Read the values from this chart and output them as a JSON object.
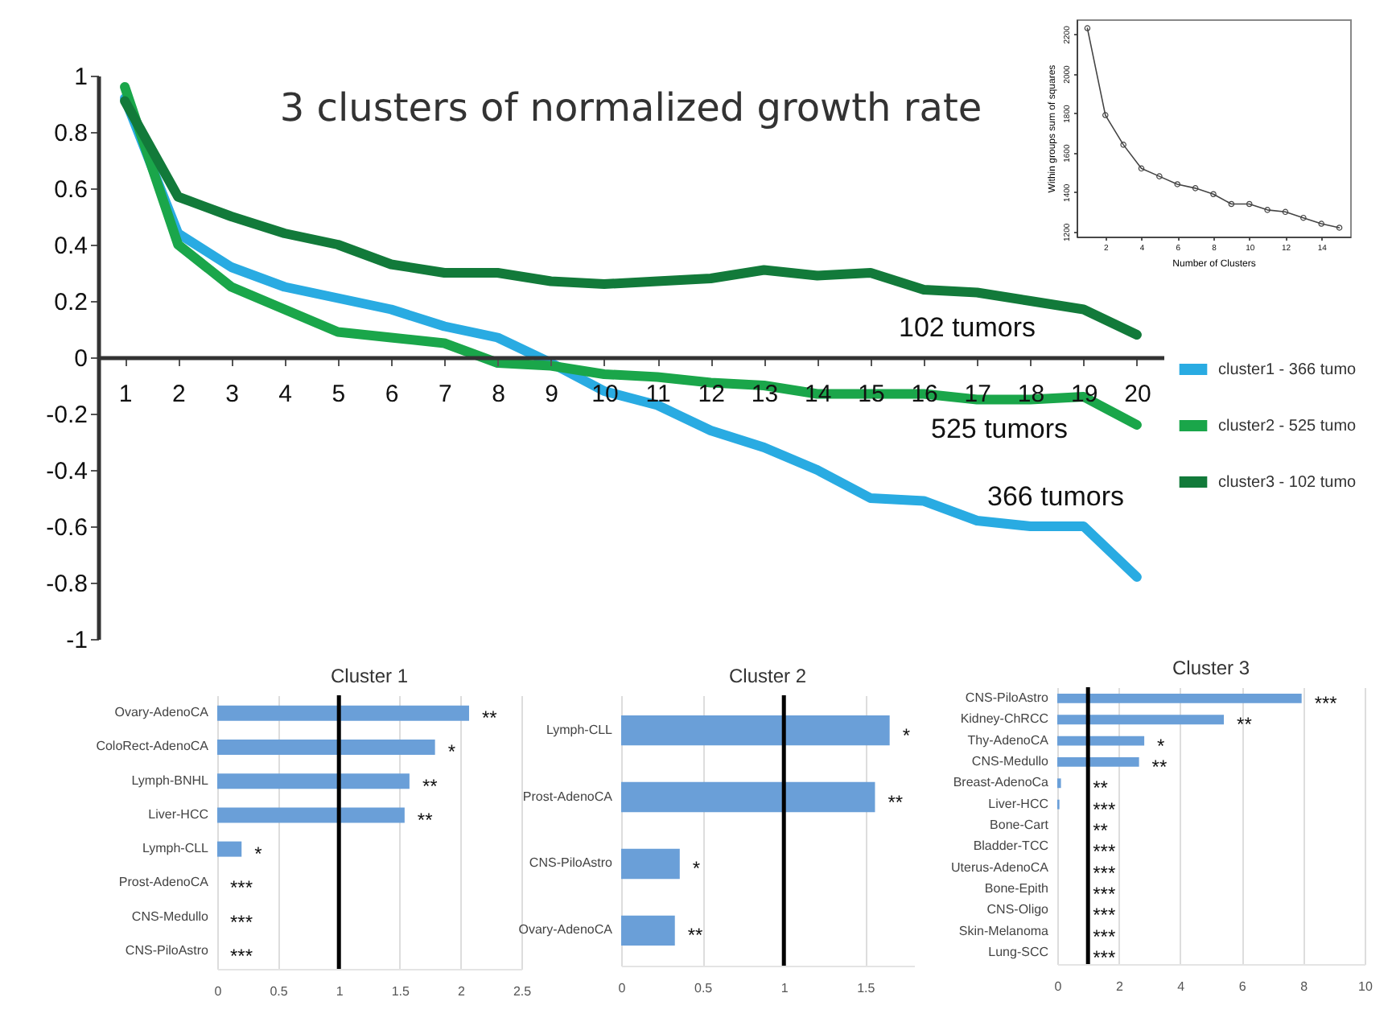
{
  "chart_data": [
    {
      "type": "line",
      "title": "3 clusters of normalized growth rate",
      "x": [
        1,
        2,
        3,
        4,
        5,
        6,
        7,
        8,
        9,
        10,
        11,
        12,
        13,
        14,
        15,
        16,
        17,
        18,
        19,
        20
      ],
      "xlim": [
        0.5,
        20.5
      ],
      "xticks": [
        1,
        2,
        3,
        4,
        5,
        6,
        7,
        8,
        9,
        10,
        11,
        12,
        13,
        14,
        15,
        16,
        17,
        18,
        19,
        20
      ],
      "ylim": [
        -1,
        1
      ],
      "yticks": [
        -1,
        -0.8,
        -0.6,
        -0.4,
        -0.2,
        0,
        0.2,
        0.4,
        0.6,
        0.8,
        1
      ],
      "legend": "right",
      "series": [
        {
          "name": "cluster1 - 366 tumo",
          "color": "#29abe2",
          "values": [
            0.92,
            0.44,
            0.32,
            0.25,
            0.21,
            0.17,
            0.11,
            0.07,
            -0.02,
            -0.12,
            -0.17,
            -0.26,
            -0.32,
            -0.4,
            -0.5,
            -0.51,
            -0.58,
            -0.6,
            -0.6,
            -0.78
          ]
        },
        {
          "name": "cluster2 - 525 tumo",
          "color": "#1aa64a",
          "values": [
            0.96,
            0.4,
            0.25,
            0.17,
            0.09,
            0.07,
            0.05,
            -0.02,
            -0.03,
            -0.06,
            -0.07,
            -0.09,
            -0.1,
            -0.13,
            -0.13,
            -0.13,
            -0.15,
            -0.15,
            -0.14,
            -0.24
          ]
        },
        {
          "name": "cluster3 - 102 tumo",
          "color": "#127a3a",
          "values": [
            0.91,
            0.57,
            0.5,
            0.44,
            0.4,
            0.33,
            0.3,
            0.3,
            0.27,
            0.26,
            0.27,
            0.28,
            0.31,
            0.29,
            0.3,
            0.24,
            0.23,
            0.2,
            0.17,
            0.08
          ]
        }
      ],
      "annotations": [
        "102 tumors",
        "525 tumors",
        "366 tumors"
      ]
    },
    {
      "type": "line",
      "xlabel": "Number of Clusters",
      "ylabel": "Within groups sum of squares",
      "x": [
        1,
        2,
        3,
        4,
        5,
        6,
        7,
        8,
        9,
        10,
        11,
        12,
        13,
        14,
        15
      ],
      "values": [
        2230,
        1790,
        1640,
        1520,
        1480,
        1440,
        1420,
        1390,
        1340,
        1340,
        1310,
        1300,
        1270,
        1240,
        1220
      ],
      "color": "#444444",
      "marker": "circle",
      "xlim": [
        0.4,
        15.6
      ],
      "xticks": [
        2,
        4,
        6,
        8,
        10,
        12,
        14
      ],
      "ylim": [
        1175,
        2275
      ],
      "yticks": [
        1200,
        1400,
        1600,
        1800,
        2000,
        2200
      ]
    },
    {
      "type": "bar",
      "orientation": "horizontal",
      "title": "Cluster 1",
      "categories": [
        "Ovary-AdenoCA",
        "ColoRect-AdenoCA",
        "Lymph-BNHL",
        "Liver-HCC",
        "Lymph-CLL",
        "Prost-AdenoCA",
        "CNS-Medullo",
        "CNS-PiloAstro"
      ],
      "values": [
        2.07,
        1.79,
        1.58,
        1.54,
        0.2,
        0,
        0,
        0
      ],
      "color": "#6a9fd8",
      "xlim": [
        0,
        2.5
      ],
      "xticks": [
        0,
        0.5,
        1,
        1.5,
        2,
        2.5
      ],
      "grid": "x",
      "ref_lines": [
        {
          "axis": "x",
          "value": 1,
          "color": "#000000"
        }
      ],
      "value_labels": [
        "**",
        "*",
        "**",
        "**",
        "*",
        "***",
        "***",
        "***"
      ]
    },
    {
      "type": "bar",
      "orientation": "horizontal",
      "title": "Cluster 2",
      "categories": [
        "Lymph-CLL",
        "Prost-AdenoCA",
        "CNS-PiloAstro",
        "Ovary-AdenoCA"
      ],
      "values": [
        1.65,
        1.56,
        0.36,
        0.33
      ],
      "color": "#6a9fd8",
      "xlim": [
        0,
        1.8
      ],
      "xticks": [
        0,
        0.5,
        1,
        1.5
      ],
      "grid": "x",
      "ref_lines": [
        {
          "axis": "x",
          "value": 1,
          "color": "#000000"
        }
      ],
      "value_labels": [
        "*",
        "**",
        "*",
        "**"
      ]
    },
    {
      "type": "bar",
      "orientation": "horizontal",
      "title": "Cluster 3",
      "categories": [
        "CNS-PiloAstro",
        "Kidney-ChRCC",
        "Thy-AdenoCA",
        "CNS-Medullo",
        "Breast-AdenoCa",
        "Liver-HCC",
        "Bone-Cart",
        "Bladder-TCC",
        "Uterus-AdenoCA",
        "Bone-Epith",
        "CNS-Oligo",
        "Skin-Melanoma",
        "Lung-SCC"
      ],
      "values": [
        7.95,
        5.42,
        2.83,
        2.66,
        0.12,
        0.07,
        0,
        0,
        0,
        0,
        0,
        0,
        0
      ],
      "color": "#6a9fd8",
      "xlim": [
        0,
        10
      ],
      "xticks": [
        0,
        2,
        4,
        6,
        8,
        10
      ],
      "grid": "x",
      "ref_lines": [
        {
          "axis": "x",
          "value": 1,
          "color": "#000000"
        }
      ],
      "value_labels": [
        "***",
        "**",
        "*",
        "**",
        "**",
        "***",
        "**",
        "***",
        "***",
        "***",
        "***",
        "***",
        "***"
      ]
    }
  ]
}
